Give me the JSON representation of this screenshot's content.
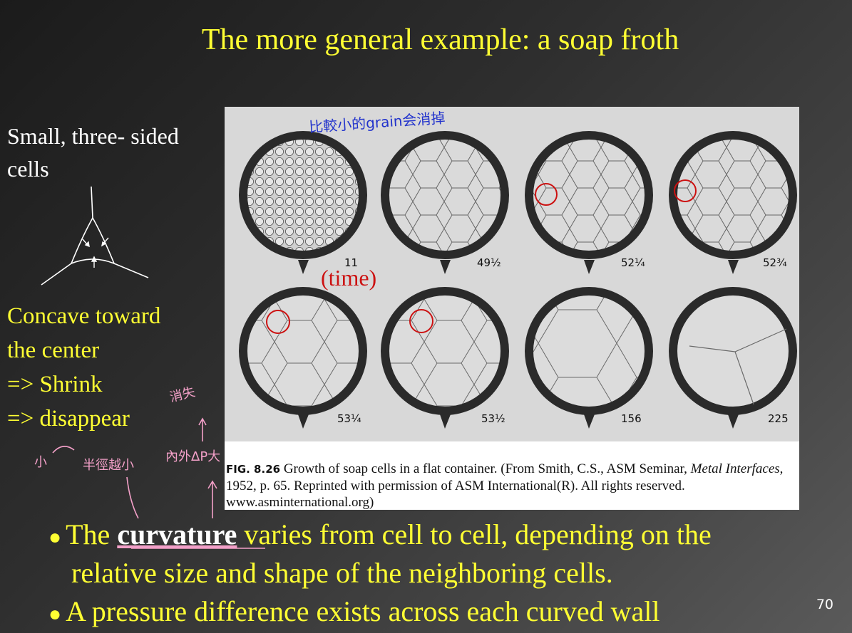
{
  "slide": {
    "title": "The more general example: a soap froth",
    "page_number": "70"
  },
  "left_panel": {
    "heading_line1": "Small, three- sided",
    "heading_line2": "cells",
    "points": [
      "Concave toward",
      "the center",
      "=> Shrink",
      "=> disappear"
    ]
  },
  "handwritten_notes": {
    "top_chinese": "比較小的grain会消掉",
    "disappear_chinese": "消失",
    "small": "小",
    "smaller_radius": "半徑越小",
    "pressure_larger": "內外ΔP大"
  },
  "figure": {
    "time_label": "(time)",
    "frames_top": [
      "11",
      "49½",
      "52¼",
      "52¾"
    ],
    "frames_bottom": [
      "53¼",
      "53½",
      "156",
      "225"
    ],
    "caption_label": "FIG. 8.26",
    "caption_text": " Growth of soap cells in a flat container. (From Smith, C.S., ASM Seminar, ",
    "caption_italic": "Metal Interfaces",
    "caption_text2": ", 1952, p. 65. Reprinted with permission of ASM International(R). All rights reserved. www.asminternational.org)"
  },
  "bullets": {
    "b1_pre": "The ",
    "b1_bold": "curvature",
    "b1_post": " varies from cell to cell, depending on the",
    "b1_line2": "relative size and shape of the neighboring cells.",
    "b2": "A pressure difference exists across each curved wall"
  },
  "colors": {
    "title_yellow": "#ffff33",
    "annotation_pink": "#f3a0c8",
    "annotation_blue": "#2233cc",
    "highlight_red": "#cc1111"
  }
}
